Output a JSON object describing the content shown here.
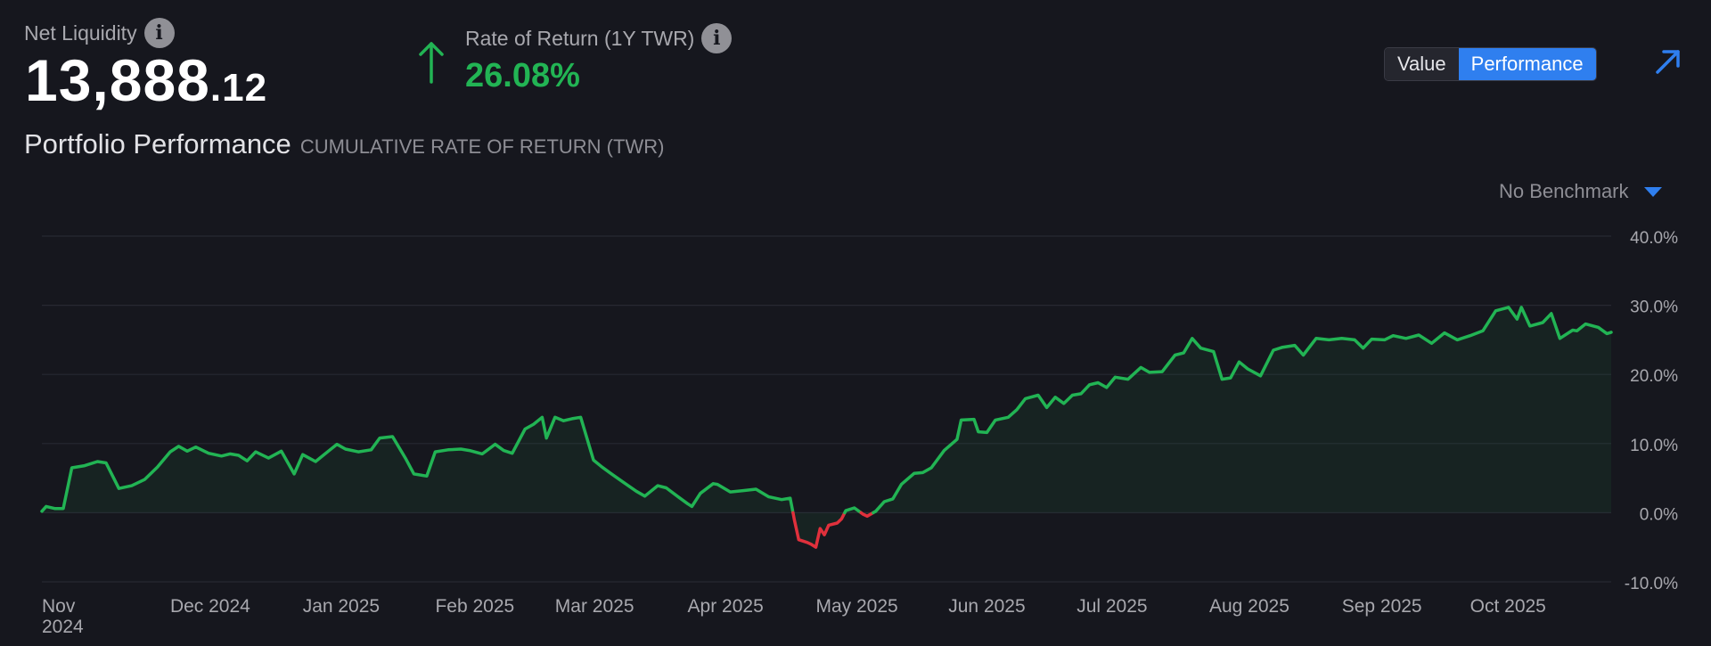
{
  "header": {
    "net_liquidity_label": "Net Liquidity",
    "net_liquidity_int": "13,888",
    "net_liquidity_dec": ".12",
    "ror_label": "Rate of Return (1Y TWR)",
    "ror_value": "26.08%",
    "info_glyph": "i"
  },
  "toggle": {
    "value_label": "Value",
    "performance_label": "Performance",
    "active": "Performance"
  },
  "icons": {
    "info": "info-icon",
    "up_arrow": "up-arrow-icon",
    "expand": "expand-arrow-icon",
    "dropdown": "caret-down-icon"
  },
  "title": {
    "main": "Portfolio Performance",
    "sub": "CUMULATIVE RATE OF RETURN (TWR)"
  },
  "benchmark": {
    "label": "No Benchmark"
  },
  "colors": {
    "background": "#16171e",
    "positive": "#22b454",
    "negative": "#e0303c",
    "accent": "#2f7fef",
    "grid": "#272932",
    "text_muted": "#a8a8ae"
  },
  "chart_data": {
    "type": "line",
    "title": "Portfolio Performance",
    "subtitle": "CUMULATIVE RATE OF RETURN (TWR)",
    "ylabel": "",
    "xlabel": "",
    "y_unit": "%",
    "ylim": [
      -10,
      40
    ],
    "y_ticks": [
      40,
      30,
      20,
      10,
      0,
      -10
    ],
    "y_tick_labels": [
      "40.0%",
      "30.0%",
      "20.0%",
      "10.0%",
      "0.0%",
      "-10.0%"
    ],
    "x_ticks": [
      {
        "date": "2024-11-01",
        "label": "Nov",
        "label2": "2024"
      },
      {
        "date": "2024-12-01",
        "label": "Dec 2024"
      },
      {
        "date": "2025-01-01",
        "label": "Jan 2025"
      },
      {
        "date": "2025-02-01",
        "label": "Feb 2025"
      },
      {
        "date": "2025-03-01",
        "label": "Mar 2025"
      },
      {
        "date": "2025-04-01",
        "label": "Apr 2025"
      },
      {
        "date": "2025-05-01",
        "label": "May 2025"
      },
      {
        "date": "2025-06-01",
        "label": "Jun 2025"
      },
      {
        "date": "2025-07-01",
        "label": "Jul 2025"
      },
      {
        "date": "2025-08-01",
        "label": "Aug 2025"
      },
      {
        "date": "2025-09-01",
        "label": "Sep 2025"
      },
      {
        "date": "2025-10-01",
        "label": "Oct 2025"
      }
    ],
    "grid": true,
    "legend": "none",
    "series": [
      {
        "points": [
          [
            "2024-11-01",
            0.2
          ],
          [
            "2024-11-02",
            0.9
          ],
          [
            "2024-11-04",
            0.6
          ],
          [
            "2024-11-06",
            0.6
          ],
          [
            "2024-11-08",
            6.5
          ],
          [
            "2024-11-11",
            6.8
          ],
          [
            "2024-11-14",
            7.4
          ],
          [
            "2024-11-16",
            7.2
          ],
          [
            "2024-11-19",
            3.5
          ],
          [
            "2024-11-22",
            3.9
          ],
          [
            "2024-11-25",
            4.8
          ],
          [
            "2024-11-28",
            6.6
          ],
          [
            "2024-12-01",
            8.8
          ],
          [
            "2024-12-03",
            9.6
          ],
          [
            "2024-12-05",
            8.9
          ],
          [
            "2024-12-07",
            9.5
          ],
          [
            "2024-12-10",
            8.6
          ],
          [
            "2024-12-13",
            8.2
          ],
          [
            "2024-12-15",
            8.5
          ],
          [
            "2024-12-17",
            8.3
          ],
          [
            "2024-12-19",
            7.5
          ],
          [
            "2024-12-21",
            8.8
          ],
          [
            "2024-12-24",
            7.9
          ],
          [
            "2024-12-27",
            8.9
          ],
          [
            "2024-12-30",
            5.6
          ],
          [
            "2025-01-01",
            8.4
          ],
          [
            "2025-01-04",
            7.4
          ],
          [
            "2025-01-07",
            8.9
          ],
          [
            "2025-01-09",
            9.9
          ],
          [
            "2025-01-11",
            9.2
          ],
          [
            "2025-01-14",
            8.8
          ],
          [
            "2025-01-17",
            9.1
          ],
          [
            "2025-01-19",
            10.8
          ],
          [
            "2025-01-22",
            11.0
          ],
          [
            "2025-01-25",
            7.9
          ],
          [
            "2025-01-27",
            5.6
          ],
          [
            "2025-01-30",
            5.3
          ],
          [
            "2025-02-01",
            8.8
          ],
          [
            "2025-02-04",
            9.1
          ],
          [
            "2025-02-07",
            9.2
          ],
          [
            "2025-02-09",
            9.0
          ],
          [
            "2025-02-12",
            8.5
          ],
          [
            "2025-02-15",
            9.9
          ],
          [
            "2025-02-17",
            9.0
          ],
          [
            "2025-02-19",
            8.6
          ],
          [
            "2025-02-22",
            12.1
          ],
          [
            "2025-02-24",
            12.8
          ],
          [
            "2025-02-26",
            13.8
          ],
          [
            "2025-02-27",
            10.8
          ],
          [
            "2025-03-01",
            13.8
          ],
          [
            "2025-03-03",
            13.3
          ],
          [
            "2025-03-05",
            13.6
          ],
          [
            "2025-03-07",
            13.8
          ],
          [
            "2025-03-10",
            7.6
          ],
          [
            "2025-03-12",
            6.6
          ],
          [
            "2025-03-14",
            5.7
          ],
          [
            "2025-03-17",
            4.4
          ],
          [
            "2025-03-20",
            3.1
          ],
          [
            "2025-03-22",
            2.4
          ],
          [
            "2025-03-25",
            3.9
          ],
          [
            "2025-03-27",
            3.6
          ],
          [
            "2025-03-30",
            2.2
          ],
          [
            "2025-04-01",
            1.3
          ],
          [
            "2025-04-02",
            0.9
          ],
          [
            "2025-04-04",
            2.8
          ],
          [
            "2025-04-07",
            4.2
          ],
          [
            "2025-04-08",
            4.1
          ],
          [
            "2025-04-11",
            3.0
          ],
          [
            "2025-04-14",
            3.2
          ],
          [
            "2025-04-17",
            3.4
          ],
          [
            "2025-04-20",
            2.3
          ],
          [
            "2025-04-23",
            1.9
          ],
          [
            "2025-04-25",
            2.1
          ],
          [
            "2025-04-26",
            -1.1
          ],
          [
            "2025-04-27",
            -3.9
          ],
          [
            "2025-04-29",
            -4.3
          ],
          [
            "2025-04-30",
            -4.6
          ],
          [
            "2025-05-01",
            -5.0
          ],
          [
            "2025-05-02",
            -2.3
          ],
          [
            "2025-05-03",
            -3.2
          ],
          [
            "2025-05-04",
            -1.8
          ],
          [
            "2025-05-06",
            -1.5
          ],
          [
            "2025-05-07",
            -0.9
          ],
          [
            "2025-05-08",
            0.3
          ],
          [
            "2025-05-10",
            0.7
          ],
          [
            "2025-05-12",
            -0.2
          ],
          [
            "2025-05-13",
            -0.5
          ],
          [
            "2025-05-15",
            0.2
          ],
          [
            "2025-05-17",
            1.6
          ],
          [
            "2025-05-19",
            2.0
          ],
          [
            "2025-05-21",
            4.1
          ],
          [
            "2025-05-24",
            5.7
          ],
          [
            "2025-05-26",
            5.8
          ],
          [
            "2025-05-28",
            6.5
          ],
          [
            "2025-05-31",
            9.0
          ],
          [
            "2025-06-03",
            10.6
          ],
          [
            "2025-06-04",
            13.4
          ],
          [
            "2025-06-07",
            13.5
          ],
          [
            "2025-06-08",
            11.7
          ],
          [
            "2025-06-10",
            11.6
          ],
          [
            "2025-06-12",
            13.4
          ],
          [
            "2025-06-15",
            13.8
          ],
          [
            "2025-06-17",
            14.9
          ],
          [
            "2025-06-19",
            16.5
          ],
          [
            "2025-06-22",
            17.0
          ],
          [
            "2025-06-24",
            15.2
          ],
          [
            "2025-06-26",
            16.7
          ],
          [
            "2025-06-28",
            15.8
          ],
          [
            "2025-06-30",
            17.0
          ],
          [
            "2025-07-02",
            17.2
          ],
          [
            "2025-07-04",
            18.5
          ],
          [
            "2025-07-06",
            18.8
          ],
          [
            "2025-07-08",
            18.1
          ],
          [
            "2025-07-10",
            19.6
          ],
          [
            "2025-07-13",
            19.3
          ],
          [
            "2025-07-16",
            21.0
          ],
          [
            "2025-07-18",
            20.3
          ],
          [
            "2025-07-21",
            20.4
          ],
          [
            "2025-07-24",
            22.8
          ],
          [
            "2025-07-26",
            23.1
          ],
          [
            "2025-07-28",
            25.2
          ],
          [
            "2025-07-30",
            23.8
          ],
          [
            "2025-08-02",
            23.3
          ],
          [
            "2025-08-04",
            19.3
          ],
          [
            "2025-08-06",
            19.5
          ],
          [
            "2025-08-08",
            21.8
          ],
          [
            "2025-08-10",
            20.8
          ],
          [
            "2025-08-13",
            19.8
          ],
          [
            "2025-08-16",
            23.5
          ],
          [
            "2025-08-18",
            23.9
          ],
          [
            "2025-08-21",
            24.2
          ],
          [
            "2025-08-23",
            22.8
          ],
          [
            "2025-08-26",
            25.2
          ],
          [
            "2025-08-29",
            25.0
          ],
          [
            "2025-09-01",
            25.2
          ],
          [
            "2025-09-04",
            25.0
          ],
          [
            "2025-09-06",
            23.8
          ],
          [
            "2025-09-08",
            25.1
          ],
          [
            "2025-09-11",
            25.0
          ],
          [
            "2025-09-13",
            25.6
          ],
          [
            "2025-09-16",
            25.2
          ],
          [
            "2025-09-19",
            25.7
          ],
          [
            "2025-09-22",
            24.5
          ],
          [
            "2025-09-25",
            26.0
          ],
          [
            "2025-09-28",
            25.0
          ],
          [
            "2025-10-01",
            25.6
          ],
          [
            "2025-10-04",
            26.3
          ],
          [
            "2025-10-07",
            29.2
          ],
          [
            "2025-10-10",
            29.7
          ],
          [
            "2025-10-12",
            28.0
          ],
          [
            "2025-10-13",
            29.7
          ],
          [
            "2025-10-15",
            27.0
          ],
          [
            "2025-10-18",
            27.5
          ],
          [
            "2025-10-20",
            28.8
          ],
          [
            "2025-10-22",
            25.2
          ],
          [
            "2025-10-25",
            26.4
          ],
          [
            "2025-10-26",
            26.3
          ],
          [
            "2025-10-28",
            27.3
          ],
          [
            "2025-10-31",
            26.8
          ],
          [
            "2025-11-02",
            25.9
          ],
          [
            "2025-11-03",
            26.1
          ]
        ]
      }
    ]
  }
}
